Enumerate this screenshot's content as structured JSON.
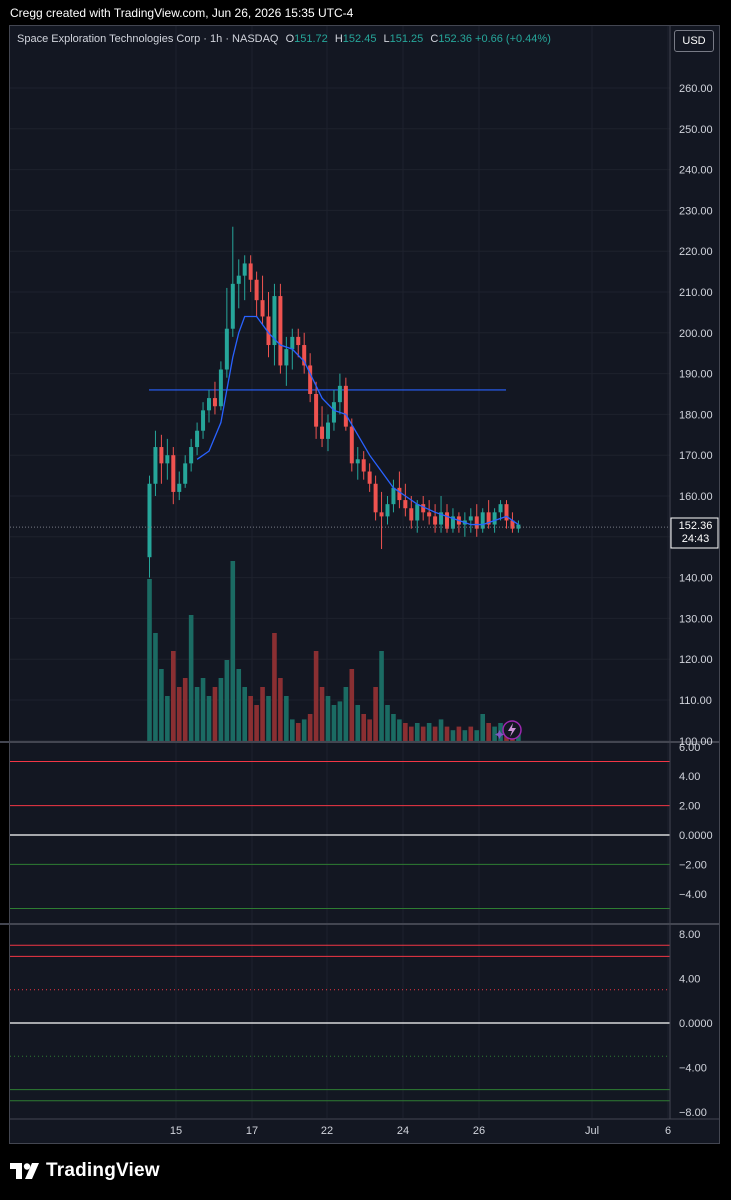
{
  "header": {
    "attribution": "Cregg created with TradingView.com, Jun 26, 2026 15:35 UTC-4",
    "currency": "USD"
  },
  "legend": {
    "symbol": "Space Exploration Technologies Corp · 1h · NASDAQ",
    "open_label": "O",
    "open": "151.72",
    "high_label": "H",
    "high": "152.45",
    "low_label": "L",
    "low": "151.25",
    "close_label": "C",
    "close": "152.36",
    "change": "+0.66 (+0.44%)"
  },
  "price_tag": {
    "price": "152.36",
    "countdown": "24:43"
  },
  "brand": {
    "name": "TradingView",
    "logo_icon": "tradingview-logo-icon"
  },
  "colors": {
    "up": "#26a69a",
    "down": "#ef5350",
    "ma": "#2962ff",
    "level": "#2962ff",
    "background": "#131722"
  },
  "chart_data": [
    {
      "type": "candlestick",
      "title": "Space Exploration Technologies Corp · 1h · NASDAQ",
      "x_ticks": [
        "15",
        "17",
        "22",
        "24",
        "26",
        "Jul",
        "6"
      ],
      "y_ticks": [
        "260.00",
        "250.00",
        "240.00",
        "230.00",
        "220.00",
        "210.00",
        "200.00",
        "190.00",
        "180.00",
        "170.00",
        "160.00",
        "150.00",
        "140.00",
        "130.00",
        "120.00",
        "110.00",
        "100.00"
      ],
      "ylim": [
        100,
        265
      ],
      "horizontal_level": 186.0,
      "last_price": 152.36,
      "candles": [
        [
          145,
          165,
          140,
          163
        ],
        [
          163,
          176,
          160,
          172
        ],
        [
          172,
          175,
          163,
          168
        ],
        [
          168,
          174,
          164,
          170
        ],
        [
          170,
          172,
          158,
          161
        ],
        [
          161,
          166,
          159,
          163
        ],
        [
          163,
          170,
          162,
          168
        ],
        [
          168,
          174,
          166,
          172
        ],
        [
          172,
          178,
          170,
          176
        ],
        [
          176,
          183,
          174,
          181
        ],
        [
          181,
          186,
          178,
          184
        ],
        [
          184,
          188,
          180,
          182
        ],
        [
          182,
          193,
          181,
          191
        ],
        [
          191,
          211,
          189,
          201
        ],
        [
          201,
          226,
          199,
          212
        ],
        [
          212,
          218,
          206,
          214
        ],
        [
          214,
          219,
          208,
          217
        ],
        [
          217,
          219,
          210,
          213
        ],
        [
          213,
          215,
          204,
          208
        ],
        [
          208,
          214,
          202,
          204
        ],
        [
          204,
          210,
          194,
          197
        ],
        [
          197,
          212,
          192,
          209
        ],
        [
          209,
          212,
          190,
          192
        ],
        [
          192,
          199,
          187,
          196
        ],
        [
          196,
          201,
          191,
          199
        ],
        [
          199,
          201,
          194,
          197
        ],
        [
          197,
          200,
          190,
          192
        ],
        [
          192,
          195,
          183,
          185
        ],
        [
          185,
          188,
          174,
          177
        ],
        [
          177,
          182,
          172,
          174
        ],
        [
          174,
          180,
          171,
          178
        ],
        [
          178,
          186,
          176,
          183
        ],
        [
          183,
          190,
          180,
          187
        ],
        [
          187,
          189,
          176,
          177
        ],
        [
          177,
          179,
          166,
          168
        ],
        [
          168,
          172,
          164,
          169
        ],
        [
          169,
          171,
          164,
          166
        ],
        [
          166,
          168,
          161,
          163
        ],
        [
          163,
          165,
          154,
          156
        ],
        [
          156,
          161,
          147,
          155
        ],
        [
          155,
          160,
          153,
          158
        ],
        [
          158,
          164,
          156,
          162
        ],
        [
          162,
          166,
          157,
          159
        ],
        [
          159,
          163,
          155,
          157
        ],
        [
          157,
          160,
          152,
          154
        ],
        [
          154,
          159,
          151,
          158
        ],
        [
          158,
          160,
          154,
          156
        ],
        [
          156,
          159,
          153,
          155
        ],
        [
          155,
          158,
          151,
          153
        ],
        [
          153,
          160,
          151,
          156
        ],
        [
          156,
          158,
          151,
          152
        ],
        [
          152,
          157,
          151,
          155
        ],
        [
          155,
          156,
          151,
          153
        ],
        [
          153,
          156,
          150,
          154
        ],
        [
          154,
          157,
          151,
          155
        ],
        [
          155,
          158,
          150,
          152
        ],
        [
          152,
          157,
          151,
          156
        ],
        [
          156,
          159,
          152,
          153
        ],
        [
          153,
          157,
          151,
          156
        ],
        [
          156,
          159,
          154,
          158
        ],
        [
          158,
          159,
          152,
          154
        ],
        [
          154,
          156,
          151,
          152
        ],
        [
          152,
          154,
          151,
          153
        ]
      ],
      "moving_average": [
        [
          8,
          169
        ],
        [
          10,
          171
        ],
        [
          12,
          178
        ],
        [
          13,
          186
        ],
        [
          14,
          194
        ],
        [
          15,
          200
        ],
        [
          16,
          204
        ],
        [
          18,
          204
        ],
        [
          20,
          200
        ],
        [
          22,
          197
        ],
        [
          24,
          196
        ],
        [
          26,
          193
        ],
        [
          27,
          190
        ],
        [
          29,
          184
        ],
        [
          31,
          181
        ],
        [
          33,
          180
        ],
        [
          35,
          175
        ],
        [
          37,
          170
        ],
        [
          39,
          166
        ],
        [
          41,
          162
        ],
        [
          43,
          160
        ],
        [
          45,
          158
        ],
        [
          48,
          156
        ],
        [
          50,
          155
        ],
        [
          52,
          154
        ],
        [
          54,
          153
        ],
        [
          56,
          153
        ],
        [
          58,
          154
        ],
        [
          60,
          155
        ],
        [
          62,
          153
        ]
      ],
      "volumes": [
        [
          0.9,
          "up"
        ],
        [
          0.6,
          "up"
        ],
        [
          0.4,
          "up"
        ],
        [
          0.25,
          "up"
        ],
        [
          0.5,
          "down"
        ],
        [
          0.3,
          "down"
        ],
        [
          0.35,
          "down"
        ],
        [
          0.7,
          "up"
        ],
        [
          0.3,
          "up"
        ],
        [
          0.35,
          "up"
        ],
        [
          0.25,
          "up"
        ],
        [
          0.3,
          "down"
        ],
        [
          0.35,
          "up"
        ],
        [
          0.45,
          "up"
        ],
        [
          1.0,
          "up"
        ],
        [
          0.4,
          "up"
        ],
        [
          0.3,
          "up"
        ],
        [
          0.25,
          "down"
        ],
        [
          0.2,
          "down"
        ],
        [
          0.3,
          "down"
        ],
        [
          0.25,
          "up"
        ],
        [
          0.6,
          "down"
        ],
        [
          0.35,
          "down"
        ],
        [
          0.25,
          "up"
        ],
        [
          0.12,
          "up"
        ],
        [
          0.1,
          "down"
        ],
        [
          0.12,
          "up"
        ],
        [
          0.15,
          "down"
        ],
        [
          0.5,
          "down"
        ],
        [
          0.3,
          "down"
        ],
        [
          0.25,
          "up"
        ],
        [
          0.2,
          "up"
        ],
        [
          0.22,
          "up"
        ],
        [
          0.3,
          "up"
        ],
        [
          0.4,
          "down"
        ],
        [
          0.2,
          "up"
        ],
        [
          0.15,
          "down"
        ],
        [
          0.12,
          "down"
        ],
        [
          0.3,
          "down"
        ],
        [
          0.5,
          "up"
        ],
        [
          0.2,
          "up"
        ],
        [
          0.15,
          "up"
        ],
        [
          0.12,
          "up"
        ],
        [
          0.1,
          "down"
        ],
        [
          0.08,
          "down"
        ],
        [
          0.1,
          "up"
        ],
        [
          0.08,
          "down"
        ],
        [
          0.1,
          "up"
        ],
        [
          0.08,
          "down"
        ],
        [
          0.12,
          "up"
        ],
        [
          0.08,
          "down"
        ],
        [
          0.06,
          "up"
        ],
        [
          0.08,
          "down"
        ],
        [
          0.06,
          "up"
        ],
        [
          0.08,
          "down"
        ],
        [
          0.06,
          "up"
        ],
        [
          0.15,
          "up"
        ],
        [
          0.1,
          "down"
        ],
        [
          0.08,
          "up"
        ],
        [
          0.1,
          "up"
        ],
        [
          0.08,
          "down"
        ],
        [
          0.06,
          "down"
        ],
        [
          0.05,
          "up"
        ]
      ]
    },
    {
      "type": "line",
      "y_ticks": [
        "6.00",
        "4.00",
        "2.00",
        "0.0000",
        "-2.00",
        "-4.00"
      ],
      "ylim": [
        -5.2,
        6.4
      ],
      "levels": [
        {
          "value": 5.0,
          "color": "#f23645"
        },
        {
          "value": 2.0,
          "color": "#f23645"
        },
        {
          "value": 0.0,
          "color": "#ffffff"
        },
        {
          "value": -2.0,
          "color": "#2e7d32"
        },
        {
          "value": -5.0,
          "color": "#2e7d32"
        }
      ]
    },
    {
      "type": "line",
      "y_ticks": [
        "8.00",
        "4.00",
        "0.0000",
        "-4.00",
        "-8.00"
      ],
      "ylim": [
        -8.2,
        8.5
      ],
      "levels": [
        {
          "value": 7.0,
          "color": "#f23645"
        },
        {
          "value": 6.0,
          "color": "#f23645"
        },
        {
          "value": 3.0,
          "color": "#f23645",
          "dotted": true
        },
        {
          "value": 0.0,
          "color": "#ffffff"
        },
        {
          "value": -3.0,
          "color": "#2e7d32",
          "dotted": true
        },
        {
          "value": -6.0,
          "color": "#2e7d32"
        },
        {
          "value": -7.0,
          "color": "#2e7d32"
        }
      ]
    }
  ]
}
